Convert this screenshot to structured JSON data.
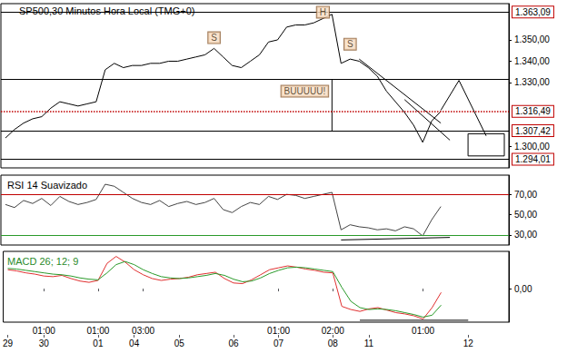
{
  "chart_data": [
    {
      "type": "line",
      "title": "SP500,30 Minutos Hora Local (TMG+0)",
      "color": "#000000",
      "grid": false,
      "tick_labels": "y",
      "values": [
        1304,
        1308,
        1311,
        1313,
        1314,
        1318,
        1321,
        1320,
        1319,
        1320,
        1321,
        1336,
        1339,
        1337,
        1338,
        1338,
        1339,
        1339,
        1340,
        1340,
        1341,
        1342,
        1343,
        1346,
        1342,
        1338,
        1337,
        1340,
        1343,
        1349,
        1350,
        1356,
        1357,
        1357,
        1358,
        1360,
        1362,
        1339,
        1341,
        1340,
        1337,
        1333,
        1326,
        1321,
        1316,
        1310,
        1302,
        1312,
        1316.49,
        null,
        null,
        null,
        null,
        null,
        null,
        null
      ],
      "ylim": [
        1290,
        1367
      ],
      "yticks": [
        {
          "value": 1300,
          "label": "1.300,00"
        },
        {
          "value": 1330,
          "label": "1.330,00"
        },
        {
          "value": 1340,
          "label": "1.340,00"
        },
        {
          "value": 1350,
          "label": "1.350,00"
        }
      ],
      "levels": [
        {
          "value": 1363.09,
          "label": "1.363,09",
          "color": "#000000",
          "line_style": "solid"
        },
        {
          "value": 1331.5,
          "color": "#000000",
          "line_style": "solid"
        },
        {
          "value": 1316.49,
          "label": "1.316,49",
          "color": "#c00000",
          "line_style": "dotted"
        },
        {
          "value": 1307.42,
          "label": "1.307,42",
          "color": "#000000",
          "line_style": "solid"
        },
        {
          "value": 1294.01,
          "label": "1.294,01",
          "color": "#000000",
          "line_style": "solid"
        }
      ],
      "annotations": [
        {
          "text": "S",
          "at": [
            23,
            1351
          ]
        },
        {
          "text": "H",
          "at": [
            35,
            1363
          ]
        },
        {
          "text": "S",
          "at": [
            38,
            1348
          ]
        },
        {
          "text": "BUUUUU!",
          "at": [
            33,
            1326
          ]
        }
      ],
      "lines": [
        [
          [
            39,
            1341
          ],
          [
            48,
            1311
          ]
        ],
        [
          [
            44,
            1322
          ],
          [
            49,
            1303
          ]
        ],
        [
          [
            36,
            1331.5
          ],
          [
            36,
            1307.42
          ]
        ],
        [
          [
            48,
            1317
          ],
          [
            50,
            1331
          ],
          [
            53,
            1305
          ]
        ]
      ],
      "boxes": [
        [
          [
            51,
            1306
          ],
          [
            55,
            1295.6
          ]
        ]
      ]
    },
    {
      "type": "line",
      "title": "RSI 14 Suavizado",
      "color": "#444444",
      "grid": false,
      "tick_labels": "y",
      "values": [
        60,
        57,
        64,
        61,
        66,
        59,
        68,
        63,
        60,
        62,
        65,
        80,
        78,
        72,
        66,
        62,
        60,
        64,
        58,
        61,
        63,
        60,
        62,
        66,
        55,
        52,
        58,
        62,
        60,
        68,
        65,
        70,
        69,
        66,
        68,
        70,
        72,
        35,
        40,
        38,
        37,
        35,
        36,
        34,
        38,
        36,
        29,
        45,
        58,
        null,
        null,
        null,
        null,
        null,
        null,
        null
      ],
      "ylim": [
        20,
        89
      ],
      "yticks": [
        {
          "value": 30,
          "label": "30,00"
        },
        {
          "value": 50,
          "label": "50,00"
        },
        {
          "value": 70,
          "label": "70,00"
        }
      ],
      "levels": [
        {
          "value": 70,
          "color": "#c00000",
          "line_style": "solid"
        },
        {
          "value": 30,
          "color": "#2a9a2a",
          "line_style": "solid"
        }
      ],
      "lines": [
        [
          [
            37,
            25
          ],
          [
            49,
            27.5
          ]
        ]
      ]
    },
    {
      "type": "line",
      "title": "MACD 26; 12; 9",
      "grid": false,
      "categories": [
        "29",
        null,
        null,
        null,
        "30",
        null,
        null,
        null,
        null,
        null,
        "01",
        null,
        null,
        null,
        "04",
        null,
        null,
        null,
        null,
        "05",
        null,
        null,
        null,
        null,
        null,
        "06",
        null,
        null,
        null,
        null,
        "07",
        null,
        null,
        null,
        null,
        null,
        "08",
        null,
        null,
        null,
        "11",
        null,
        null,
        null,
        null,
        null,
        null,
        null,
        null,
        null,
        null,
        "12",
        null,
        null,
        null,
        null
      ],
      "hour_labels": [
        null,
        null,
        null,
        null,
        "01:00",
        null,
        null,
        null,
        null,
        null,
        "01:00",
        null,
        null,
        null,
        null,
        "03:00",
        null,
        null,
        null,
        null,
        null,
        null,
        null,
        null,
        null,
        null,
        null,
        null,
        null,
        null,
        "01:00",
        null,
        null,
        null,
        null,
        null,
        "02:00",
        null,
        null,
        null,
        null,
        null,
        null,
        null,
        null,
        null,
        "01:00",
        null,
        null,
        null,
        null,
        null,
        null,
        null,
        null,
        null
      ],
      "series": [
        {
          "color": "#e03030",
          "values": [
            3.0,
            2.8,
            2.5,
            2.3,
            2.0,
            1.9,
            2.1,
            1.6,
            1.2,
            1.0,
            1.3,
            4.0,
            5.1,
            4.2,
            3.0,
            2.2,
            1.6,
            1.3,
            1.5,
            1.6,
            1.8,
            2.2,
            2.4,
            2.6,
            1.6,
            0.9,
            0.8,
            1.4,
            2.2,
            3.0,
            3.3,
            3.6,
            3.4,
            3.1,
            2.9,
            2.6,
            2.5,
            -2.8,
            -3.3,
            -3.6,
            -3.2,
            -3.0,
            -3.4,
            -3.8,
            -4.0,
            -4.3,
            -4.8,
            -3.0,
            -0.6,
            null,
            null,
            null,
            null,
            null,
            null,
            null
          ]
        },
        {
          "color": "#2a9a2a",
          "values": [
            3.2,
            3.1,
            2.9,
            2.7,
            2.5,
            2.3,
            2.2,
            2.0,
            1.7,
            1.5,
            1.4,
            2.5,
            3.8,
            4.3,
            3.8,
            3.0,
            2.4,
            1.9,
            1.7,
            1.6,
            1.7,
            1.9,
            2.1,
            2.4,
            2.1,
            1.5,
            1.1,
            1.2,
            1.7,
            2.4,
            2.9,
            3.3,
            3.4,
            3.3,
            3.1,
            2.9,
            2.7,
            0.2,
            -2.0,
            -3.0,
            -3.3,
            -3.2,
            -3.3,
            -3.5,
            -3.8,
            -4.1,
            -4.5,
            -4.2,
            -2.6,
            null,
            null,
            null,
            null,
            null,
            null,
            null
          ]
        }
      ],
      "ylim": [
        -5.3,
        5.9
      ],
      "yticks": [
        {
          "value": 0,
          "label": "0,00"
        }
      ],
      "lines": [
        [
          [
            39,
            -5
          ],
          [
            51,
            -5
          ]
        ]
      ]
    }
  ]
}
